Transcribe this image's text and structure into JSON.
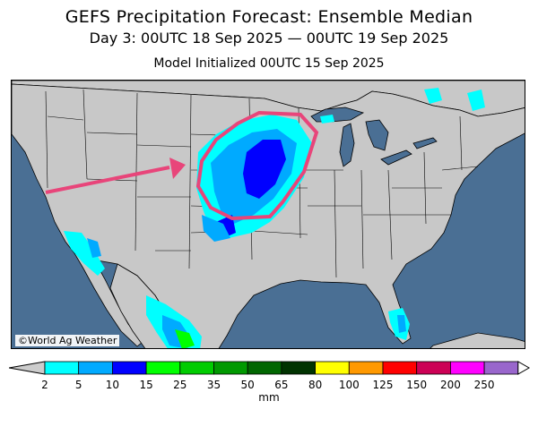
{
  "title": "GEFS Precipitation Forecast: Ensemble Median",
  "valid_period": "Day 3: 00UTC 18 Sep 2025 — 00UTC 19 Sep 2025",
  "initialized": "Model Initialized 00UTC 15 Sep 2025",
  "credit": "©World Ag Weather",
  "legend": {
    "units": "mm",
    "ticks": [
      "2",
      "5",
      "10",
      "15",
      "25",
      "35",
      "50",
      "65",
      "80",
      "100",
      "125",
      "150",
      "200",
      "250"
    ],
    "colors": [
      "#00ffff",
      "#00aaff",
      "#0000ff",
      "#00ff00",
      "#00cc00",
      "#009900",
      "#006600",
      "#003300",
      "#ffff00",
      "#ff9900",
      "#ff0000",
      "#cc0055",
      "#ff00ff",
      "#9966cc"
    ],
    "below_color": "#cccccc",
    "above_color": "#ffffff"
  },
  "colors": {
    "ocean": "#4a6f94",
    "land": "#c8c8c8",
    "annotation": "#e8457a"
  }
}
